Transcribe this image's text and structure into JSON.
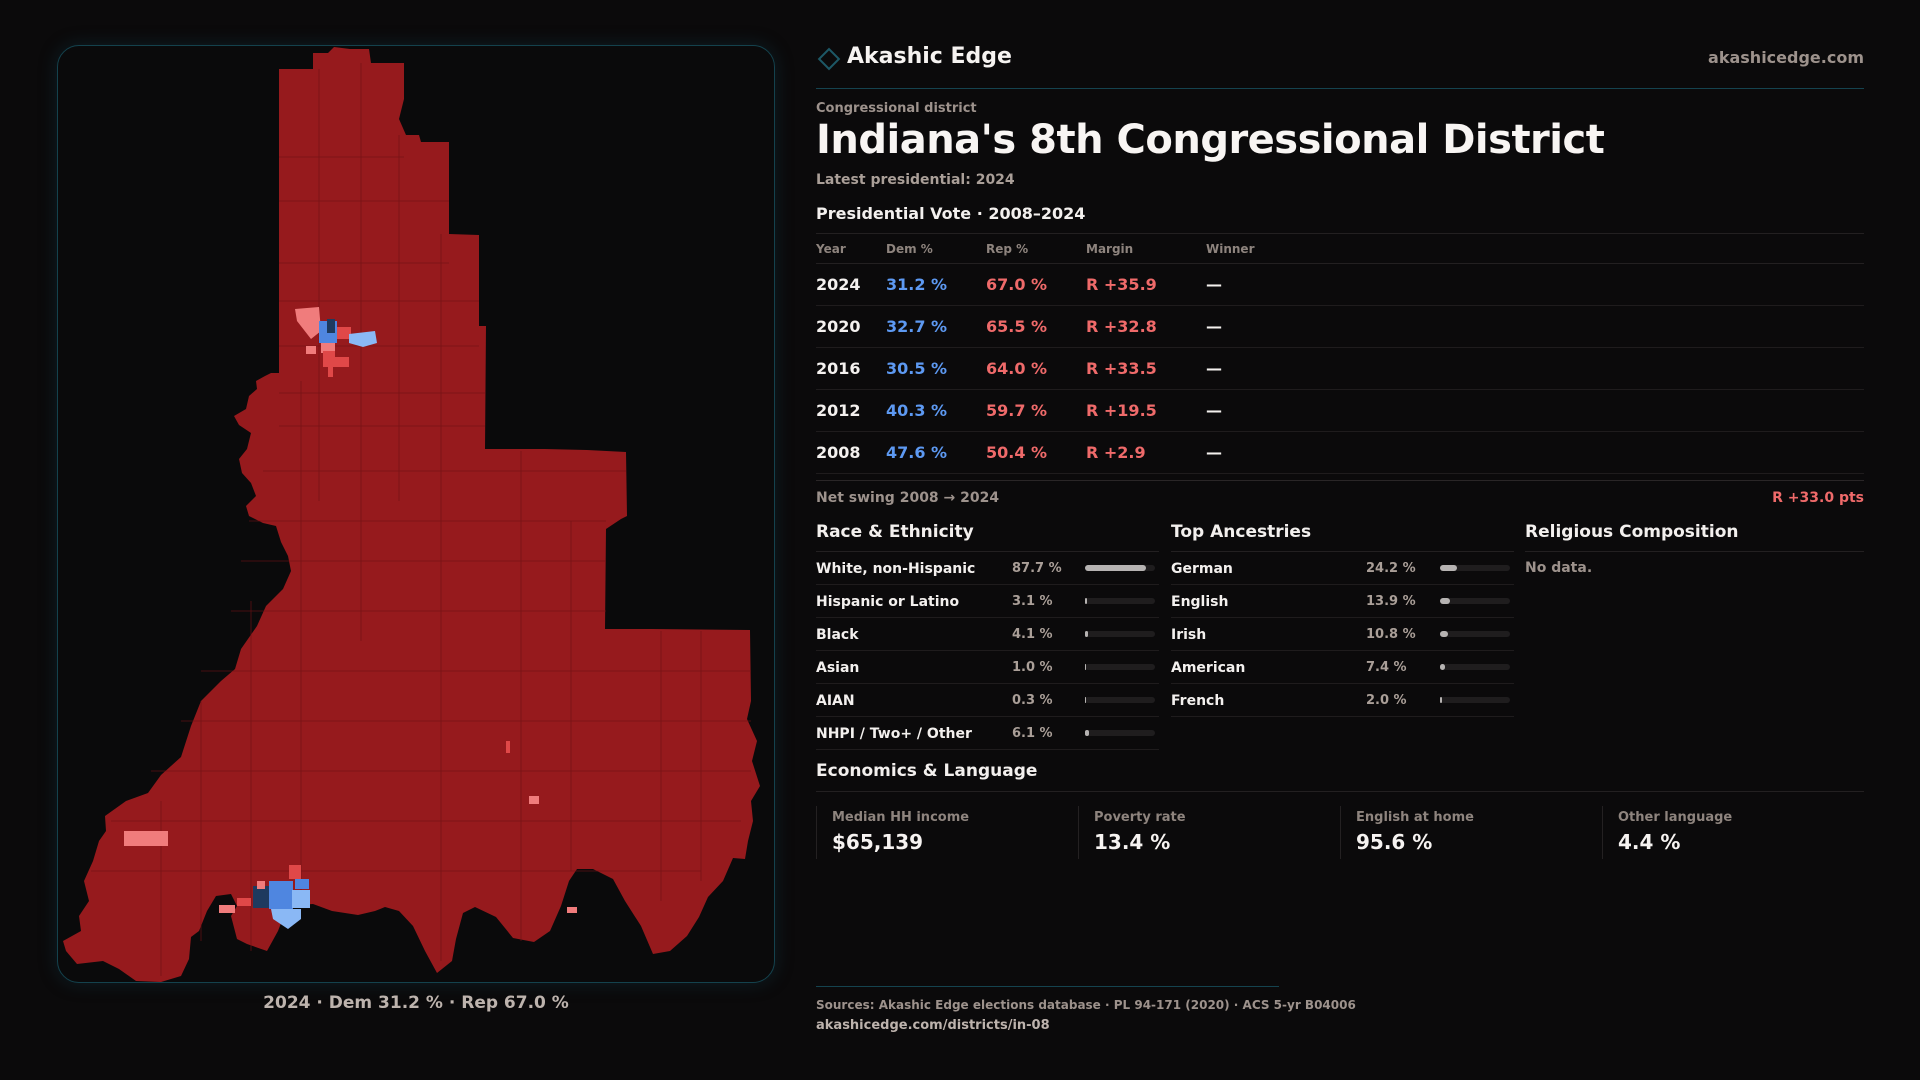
{
  "brand": {
    "name": "Akashic Edge",
    "site": "akashicedge.com",
    "accent": "#1d5866"
  },
  "header": {
    "kicker": "Congressional district",
    "title": "Indiana's 8th Congressional District",
    "latest": "Latest presidential: 2024"
  },
  "map": {
    "caption": "2024 · Dem 31.2 % · Rep 67.0 %",
    "colors": {
      "strong_rep": "#961a1d",
      "lean_rep": "#f07c7c",
      "mid_rep": "#e04848",
      "lean_dem": "#8ab8f5",
      "mid_dem": "#4f86e0",
      "strong_dem": "#1e3a5f"
    }
  },
  "presidential": {
    "title": "Presidential Vote · 2008–2024",
    "columns": [
      "Year",
      "Dem %",
      "Rep %",
      "Margin",
      "Winner"
    ],
    "rows": [
      {
        "year": "2024",
        "dem": "31.2 %",
        "rep": "67.0 %",
        "margin": "R +35.9",
        "winner": "—"
      },
      {
        "year": "2020",
        "dem": "32.7 %",
        "rep": "65.5 %",
        "margin": "R +32.8",
        "winner": "—"
      },
      {
        "year": "2016",
        "dem": "30.5 %",
        "rep": "64.0 %",
        "margin": "R +33.5",
        "winner": "—"
      },
      {
        "year": "2012",
        "dem": "40.3 %",
        "rep": "59.7 %",
        "margin": "R +19.5",
        "winner": "—"
      },
      {
        "year": "2008",
        "dem": "47.6 %",
        "rep": "50.4 %",
        "margin": "R +2.9",
        "winner": "—"
      }
    ],
    "swing_label": "Net swing 2008 → 2024",
    "swing_value": "R +33.0 pts",
    "dem_color": "#5d99f2",
    "rep_color": "#ef6a6a"
  },
  "race": {
    "title": "Race & Ethnicity",
    "items": [
      {
        "label": "White, non-Hispanic",
        "value": "87.7 %",
        "pct": 87.7
      },
      {
        "label": "Hispanic or Latino",
        "value": "3.1 %",
        "pct": 3.1
      },
      {
        "label": "Black",
        "value": "4.1 %",
        "pct": 4.1
      },
      {
        "label": "Asian",
        "value": "1.0 %",
        "pct": 1.0
      },
      {
        "label": "AIAN",
        "value": "0.3 %",
        "pct": 0.3
      },
      {
        "label": "NHPI / Two+ / Other",
        "value": "6.1 %",
        "pct": 6.1
      }
    ]
  },
  "ancestry": {
    "title": "Top Ancestries",
    "items": [
      {
        "label": "German",
        "value": "24.2 %",
        "pct": 24.2
      },
      {
        "label": "English",
        "value": "13.9 %",
        "pct": 13.9
      },
      {
        "label": "Irish",
        "value": "10.8 %",
        "pct": 10.8
      },
      {
        "label": "American",
        "value": "7.4 %",
        "pct": 7.4
      },
      {
        "label": "French",
        "value": "2.0 %",
        "pct": 2.0
      }
    ]
  },
  "religion": {
    "title": "Religious Composition",
    "empty": "No data."
  },
  "economics": {
    "title": "Economics & Language",
    "stats": [
      {
        "label": "Median HH income",
        "value": "$65,139"
      },
      {
        "label": "Poverty rate",
        "value": "13.4 %"
      },
      {
        "label": "English at home",
        "value": "95.6 %"
      },
      {
        "label": "Other language",
        "value": "4.4 %"
      }
    ]
  },
  "footer": {
    "sources": "Sources: Akashic Edge elections database · PL 94-171 (2020) · ACS 5-yr B04006",
    "url": "akashicedge.com/districts/in-08"
  }
}
